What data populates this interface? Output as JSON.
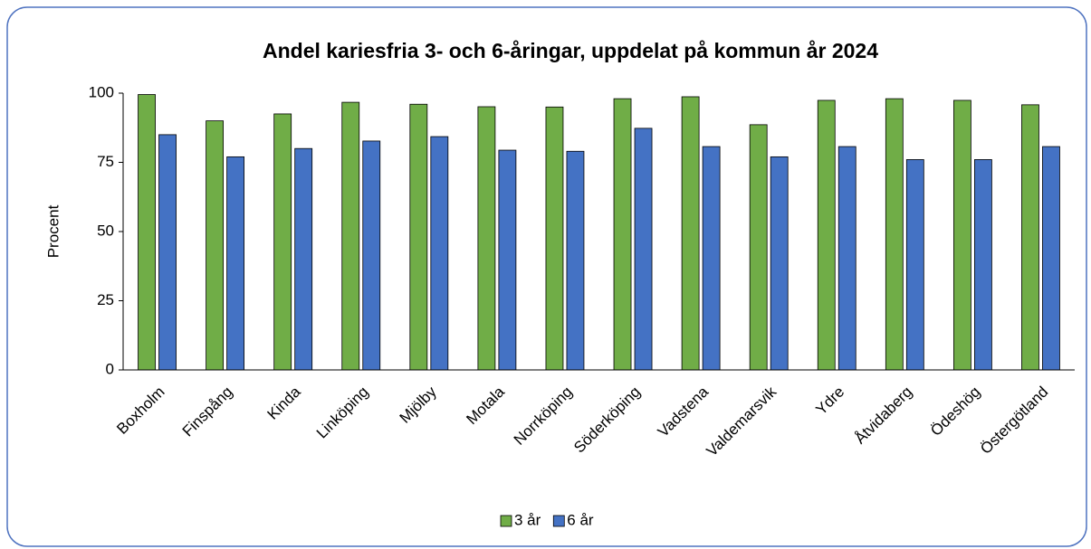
{
  "chart_data": {
    "type": "bar",
    "title": "Andel kariesfria 3- och 6-åringar, uppdelat på kommun år 2024",
    "y_label": "Procent",
    "categories": [
      "Boxholm",
      "Finspång",
      "Kinda",
      "Linköping",
      "Mjölby",
      "Motala",
      "Norrköping",
      "Söderköping",
      "Vadstena",
      "Valdemarsvik",
      "Ydre",
      "Åtvidaberg",
      "Ödeshög",
      "Östergötland"
    ],
    "series": [
      {
        "name": "3 år",
        "color": "#70ad47",
        "values": [
          99.5,
          90,
          92.5,
          96.7,
          96,
          95.1,
          95,
          98,
          98.7,
          88.6,
          97.4,
          98,
          97.4,
          95.8
        ]
      },
      {
        "name": "6 år",
        "color": "#4472c4",
        "values": [
          85,
          77,
          80,
          82.7,
          84.3,
          79.4,
          79,
          87.3,
          80.7,
          77,
          80.7,
          76,
          76,
          80.7
        ]
      }
    ],
    "ylim": [
      0,
      100
    ],
    "yticks": [
      0,
      25,
      50,
      75,
      100
    ],
    "grid": false,
    "legend": "bottom"
  }
}
